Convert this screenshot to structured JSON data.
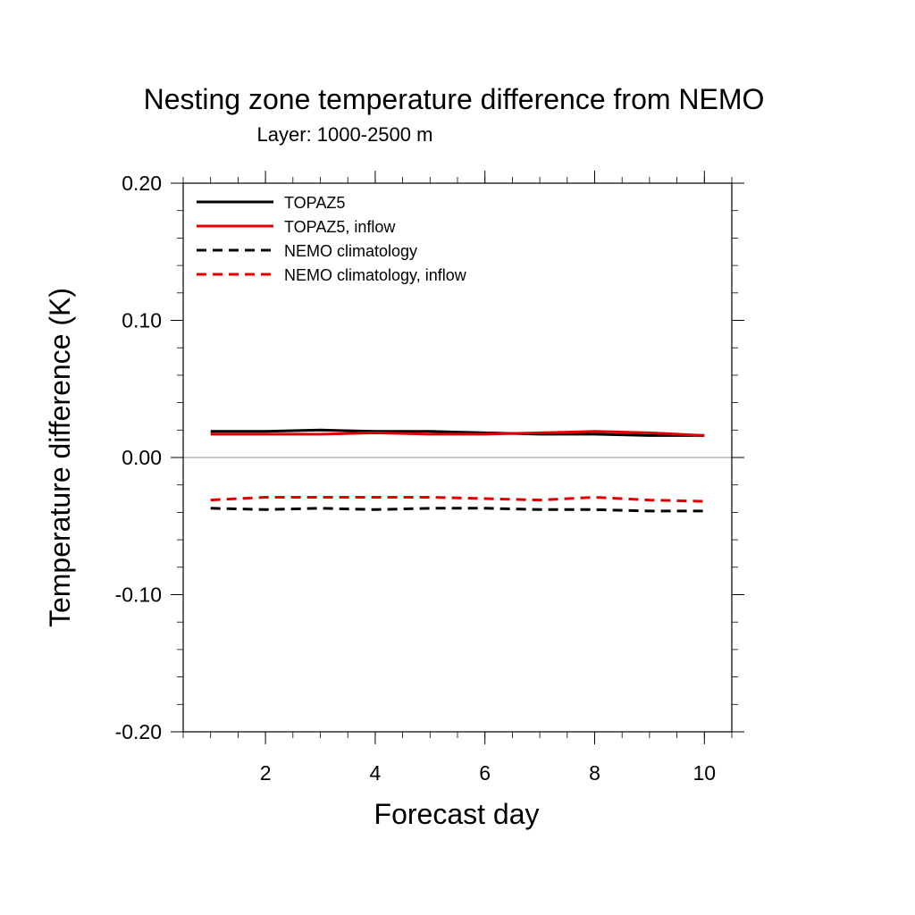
{
  "chart_data": {
    "type": "line",
    "title": "Nesting zone temperature difference from NEMO",
    "subtitle": "Layer: 1000-2500 m",
    "xlabel": "Forecast day",
    "ylabel": "Temperature difference (K)",
    "xlim": [
      0.5,
      10.5
    ],
    "ylim": [
      -0.2,
      0.2
    ],
    "x_ticks": [
      2,
      4,
      6,
      8,
      10
    ],
    "x_tick_labels": [
      "2",
      "4",
      "6",
      "8",
      "10"
    ],
    "y_ticks": [
      -0.2,
      -0.1,
      0.0,
      0.1,
      0.2
    ],
    "y_tick_labels": [
      "-0.20",
      "-0.10",
      "0.00",
      "0.10",
      "0.20"
    ],
    "zero_line": true,
    "grid": false,
    "legend_position": "top-left",
    "x": [
      1,
      2,
      3,
      4,
      5,
      6,
      7,
      8,
      9,
      10
    ],
    "series": [
      {
        "name": "TOPAZ5",
        "color": "#000000",
        "dash": "solid",
        "values": [
          0.019,
          0.019,
          0.02,
          0.019,
          0.019,
          0.018,
          0.017,
          0.017,
          0.016,
          0.016
        ]
      },
      {
        "name": "TOPAZ5, inflow",
        "color": "#e00000",
        "dash": "solid",
        "values": [
          0.017,
          0.017,
          0.017,
          0.018,
          0.017,
          0.017,
          0.018,
          0.019,
          0.018,
          0.016
        ]
      },
      {
        "name": "NEMO climatology",
        "color": "#000000",
        "dash": "dashed",
        "values": [
          -0.037,
          -0.038,
          -0.037,
          -0.038,
          -0.037,
          -0.037,
          -0.038,
          -0.038,
          -0.039,
          -0.039
        ]
      },
      {
        "name": "NEMO climatology, inflow",
        "color": "#e00000",
        "dash": "dashed",
        "values": [
          -0.031,
          -0.029,
          -0.029,
          -0.029,
          -0.029,
          -0.03,
          -0.031,
          -0.029,
          -0.031,
          -0.032
        ]
      }
    ]
  }
}
